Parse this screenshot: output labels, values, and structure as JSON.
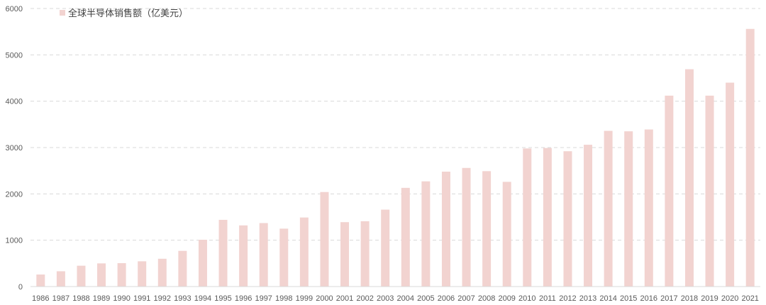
{
  "chart_data": {
    "type": "bar",
    "title": "",
    "xlabel": "",
    "ylabel": "",
    "ylim": [
      0,
      6000
    ],
    "yticks": [
      0,
      1000,
      2000,
      3000,
      4000,
      5000,
      6000
    ],
    "grid": true,
    "legend_position": "top-left",
    "bar_color": "#f2d3d0",
    "categories": [
      "1986",
      "1987",
      "1988",
      "1989",
      "1990",
      "1991",
      "1992",
      "1993",
      "1994",
      "1995",
      "1996",
      "1997",
      "1998",
      "1999",
      "2000",
      "2001",
      "2002",
      "2003",
      "2004",
      "2005",
      "2006",
      "2007",
      "2008",
      "2009",
      "2010",
      "2011",
      "2012",
      "2013",
      "2014",
      "2015",
      "2016",
      "2017",
      "2018",
      "2019",
      "2020",
      "2021"
    ],
    "series": [
      {
        "name": "全球半导体销售额（亿美元）",
        "values": [
          260,
          330,
          450,
          500,
          505,
          545,
          600,
          770,
          1010,
          1440,
          1320,
          1370,
          1250,
          1490,
          2040,
          1390,
          1410,
          1660,
          2130,
          2270,
          2480,
          2560,
          2490,
          2260,
          2980,
          2990,
          2920,
          3060,
          3360,
          3350,
          3390,
          4120,
          4690,
          4120,
          4400,
          5560
        ]
      }
    ]
  }
}
